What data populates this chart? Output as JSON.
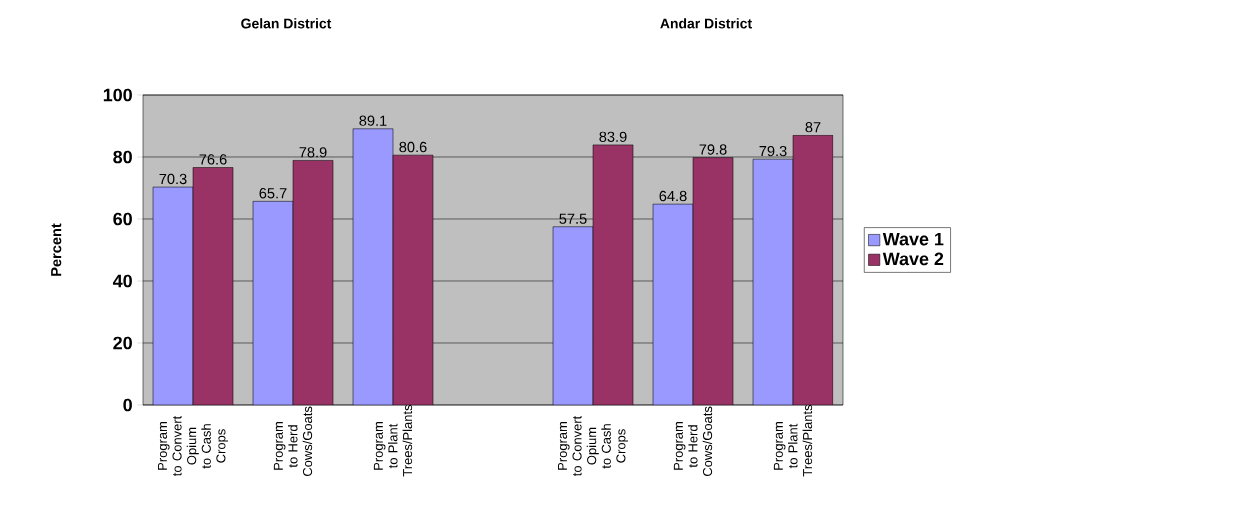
{
  "chart_data": {
    "type": "bar",
    "ylabel": "Percent",
    "annotations": [
      "Gelan District",
      "Andar District"
    ],
    "categories": [
      "Program to Convert Opium to Cash Crops",
      "Program to Herd Cows/Goats",
      "Program to Plant Trees/Plants",
      null,
      "Program to Convert Opium to Cash Crops",
      "Program to Herd Cows/Goats",
      "Program to Plant Trees/Plants"
    ],
    "series": [
      {
        "name": "Wave 1",
        "color": "#9999ff",
        "values": [
          70.3,
          65.7,
          89.1,
          null,
          57.5,
          64.8,
          79.3
        ]
      },
      {
        "name": "Wave 2",
        "color": "#993366",
        "values": [
          76.6,
          78.9,
          80.6,
          null,
          83.9,
          79.8,
          87
        ]
      }
    ],
    "ylim": [
      0,
      100
    ],
    "yticks": [
      0,
      20,
      40,
      60,
      80,
      100
    ],
    "grid": "y",
    "legend": "right",
    "data_labels": true
  }
}
